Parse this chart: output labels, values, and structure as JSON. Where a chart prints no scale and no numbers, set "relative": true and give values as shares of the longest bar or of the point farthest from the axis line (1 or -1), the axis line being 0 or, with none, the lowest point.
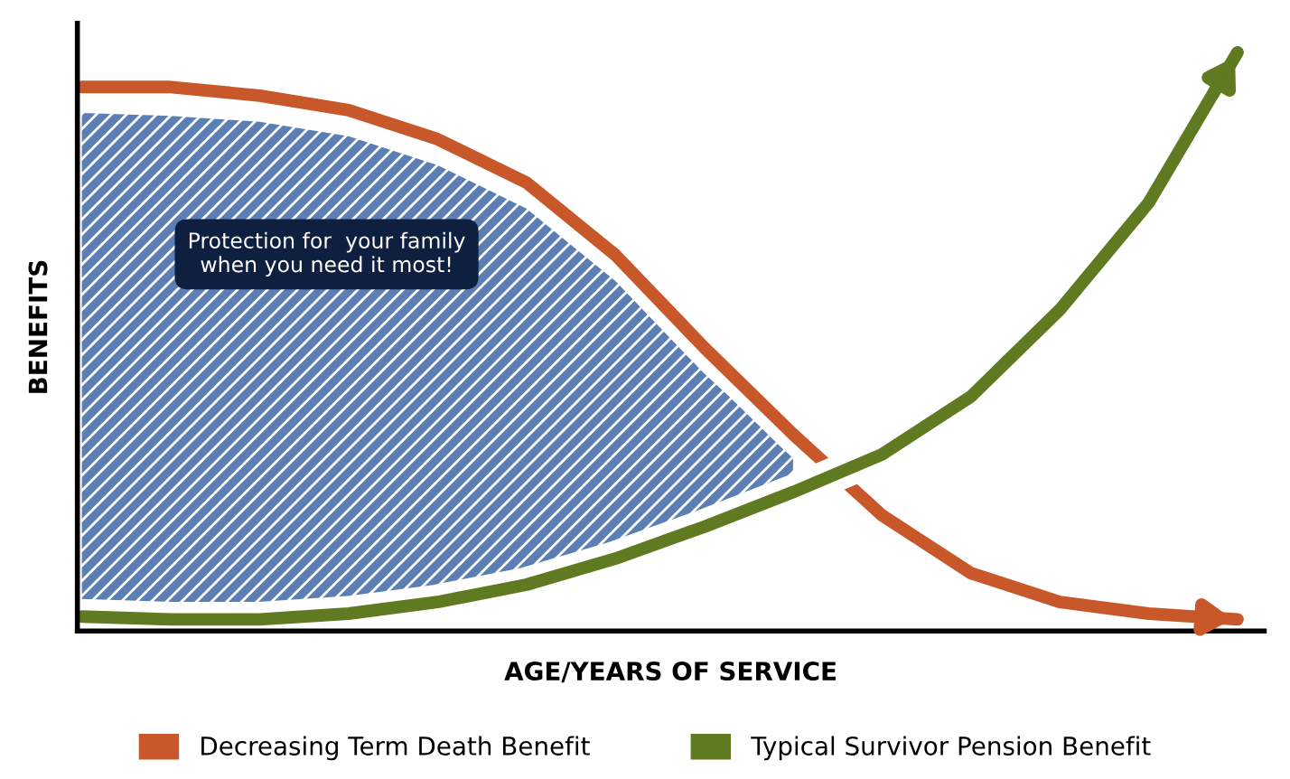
{
  "chart_data": {
    "type": "line",
    "xlabel": "AGE/YEARS OF SERVICE",
    "ylabel": "BENEFITS",
    "relative": true,
    "legend": "bottom",
    "categories": [
      null,
      null,
      null,
      null,
      null,
      null,
      null,
      null,
      null,
      null,
      null,
      null,
      null,
      null
    ],
    "annotations": [
      "Protection for  your family\nwhen you need it most!"
    ],
    "series": [
      {
        "type": "area",
        "color": "#5b7fb5",
        "values": [
          0.895,
          0.89,
          0.88,
          0.855,
          0.805,
          0.73,
          0.605,
          0.445,
          0.305,
          null,
          null,
          null,
          null,
          null
        ]
      },
      {
        "name": "Decreasing Term Death Benefit",
        "color": "#c8582a",
        "values": [
          0.94,
          0.94,
          0.925,
          0.9,
          0.85,
          0.775,
          0.65,
          0.49,
          0.34,
          0.2,
          0.1,
          0.05,
          0.03,
          0.02
        ]
      },
      {
        "name": "Typical Survivor Pension Benefit",
        "color": "#5f7a21",
        "values": [
          0.025,
          0.02,
          0.02,
          0.03,
          0.05,
          0.08,
          0.125,
          0.18,
          0.24,
          0.305,
          0.405,
          0.555,
          0.74,
          1.0
        ]
      }
    ]
  }
}
